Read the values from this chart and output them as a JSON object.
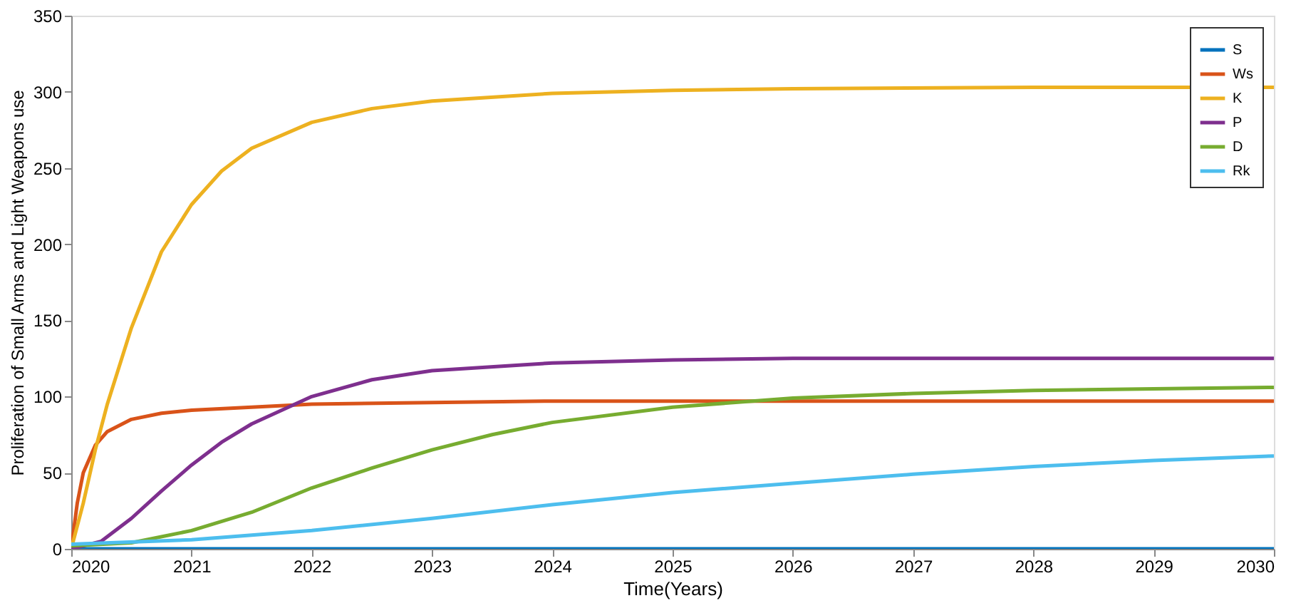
{
  "chart_data": {
    "type": "line",
    "xlabel": "Time(Years)",
    "ylabel": "Proliferation of Small Arms and Light Weapons use",
    "xlim": [
      2020,
      2030
    ],
    "xticks": [
      2020,
      2021,
      2022,
      2023,
      2024,
      2025,
      2026,
      2027,
      2028,
      2029,
      2030
    ],
    "ylim": [
      0,
      350
    ],
    "yticks": [
      0,
      50,
      100,
      150,
      200,
      250,
      300,
      350
    ],
    "grid": false,
    "legend": "top right",
    "marker": "none",
    "line_style": "solid",
    "series": [
      {
        "name": "S",
        "color": "#0072bd",
        "x": [
          2020,
          2025,
          2030
        ],
        "values": [
          0,
          0,
          0
        ]
      },
      {
        "name": "Ws",
        "color": "#d95319",
        "x": [
          2020,
          2020.05,
          2020.1,
          2020.2,
          2020.3,
          2020.5,
          2020.75,
          2021,
          2022,
          2023,
          2024,
          2026,
          2030
        ],
        "values": [
          0,
          30,
          50,
          68,
          77,
          85,
          89,
          91,
          95,
          96,
          97,
          97,
          97
        ]
      },
      {
        "name": "K",
        "color": "#edb120",
        "x": [
          2020,
          2020.1,
          2020.2,
          2020.3,
          2020.5,
          2020.75,
          2021,
          2021.25,
          2021.5,
          2022,
          2022.5,
          2023,
          2024,
          2025,
          2026,
          2028,
          2030
        ],
        "values": [
          0,
          30,
          65,
          95,
          145,
          195,
          226,
          248,
          263,
          280,
          289,
          294,
          299,
          301,
          302,
          303,
          303
        ]
      },
      {
        "name": "P",
        "color": "#7e2f8e",
        "x": [
          2020,
          2020.25,
          2020.5,
          2020.75,
          2021,
          2021.25,
          2021.5,
          2022,
          2022.5,
          2023,
          2024,
          2025,
          2026,
          2030
        ],
        "values": [
          0,
          5,
          20,
          38,
          55,
          70,
          82,
          100,
          111,
          117,
          122,
          124,
          125,
          125
        ]
      },
      {
        "name": "D",
        "color": "#77ac30",
        "x": [
          2020,
          2020.5,
          2021,
          2021.5,
          2022,
          2022.5,
          2023,
          2023.5,
          2024,
          2025,
          2026,
          2027,
          2028,
          2029,
          2030
        ],
        "values": [
          2,
          4,
          12,
          24,
          40,
          53,
          65,
          75,
          83,
          93,
          99,
          102,
          104,
          105,
          106
        ]
      },
      {
        "name": "Rk",
        "color": "#4dbeee",
        "x": [
          2020,
          2021,
          2022,
          2023,
          2024,
          2025,
          2026,
          2027,
          2028,
          2029,
          2030
        ],
        "values": [
          3,
          6,
          12,
          20,
          29,
          37,
          43,
          49,
          54,
          58,
          61
        ]
      }
    ]
  }
}
